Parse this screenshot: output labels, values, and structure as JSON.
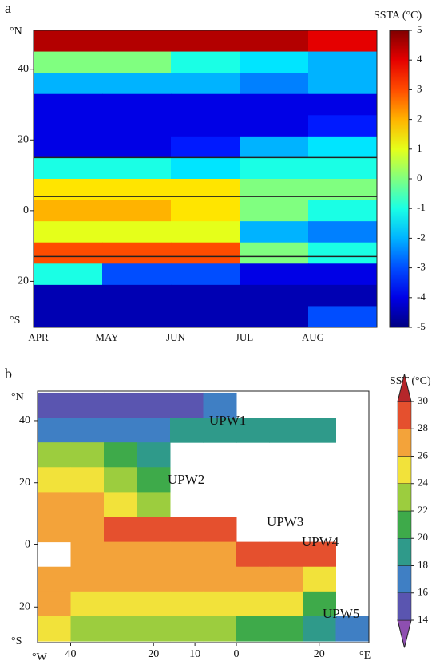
{
  "chart_data": [
    {
      "type": "heatmap",
      "label": "a",
      "colorbar_title": "SSTA (°C)",
      "categories": [
        "APR",
        "MAY",
        "JUN",
        "JUL",
        "AUG"
      ],
      "y": [
        48,
        42,
        36,
        30,
        24,
        18,
        12,
        6,
        0,
        -6,
        -12,
        -18,
        -24,
        -30
      ],
      "values": [
        [
          4.5,
          4.5,
          4.5,
          4.5,
          4
        ],
        [
          0,
          0,
          -1,
          -1.5,
          -2
        ],
        [
          -2,
          -2,
          -2,
          -2.5,
          -2
        ],
        [
          -4,
          -4,
          -4,
          -4,
          -4
        ],
        [
          -4,
          -4,
          -4,
          -4,
          -3.5
        ],
        [
          -4,
          -4,
          -3.5,
          -2,
          -1.5
        ],
        [
          -1,
          -1,
          -1.5,
          -1,
          -1
        ],
        [
          1.5,
          1.5,
          1.5,
          0,
          0
        ],
        [
          2,
          2,
          1.5,
          0,
          -1
        ],
        [
          1,
          1,
          1,
          -2,
          -2.5
        ],
        [
          3,
          3,
          3,
          0,
          -1
        ],
        [
          -1,
          -3,
          -3,
          -4,
          -4
        ],
        [
          -4.5,
          -4.5,
          -4.5,
          -4.5,
          -4.5
        ],
        [
          -4.5,
          -4.5,
          -4.5,
          -4.5,
          -3
        ]
      ],
      "ylim": [
        -33,
        51
      ],
      "yticks": [
        40,
        20,
        0,
        {
          "value": -20,
          "label": "20"
        }
      ],
      "y_unit_top": "°N",
      "y_unit_bottom": "°S",
      "ref_lines": [
        15,
        4,
        -13
      ],
      "zlim": [
        -5,
        5
      ],
      "zticks": [
        5,
        4,
        3,
        2,
        1,
        0,
        -1,
        -2,
        -3,
        -4,
        -5
      ]
    },
    {
      "type": "map",
      "label": "b",
      "colorbar_title": "SST (°C)",
      "x": [
        -44,
        -36,
        -28,
        -20,
        -12,
        -4,
        4,
        12,
        20,
        28
      ],
      "y": [
        45,
        37,
        29,
        21,
        13,
        5,
        -3,
        -11,
        -19,
        -27
      ],
      "values": [
        [
          14,
          14,
          15,
          15,
          15,
          16,
          null,
          null,
          null,
          null
        ],
        [
          17,
          17,
          17,
          17,
          18,
          18,
          18,
          18,
          18,
          null
        ],
        [
          22,
          22,
          21,
          19,
          null,
          null,
          null,
          null,
          null,
          null
        ],
        [
          24,
          24,
          23,
          21,
          null,
          null,
          null,
          null,
          null,
          null
        ],
        [
          26,
          26,
          25,
          23,
          null,
          null,
          null,
          null,
          null,
          null
        ],
        [
          27,
          27,
          28,
          28,
          29,
          28,
          null,
          null,
          null,
          null
        ],
        [
          null,
          27,
          27,
          27,
          27,
          27,
          28,
          28,
          29,
          null
        ],
        [
          27,
          26,
          26,
          26,
          26,
          26,
          26,
          26,
          25,
          null
        ],
        [
          26,
          25,
          25,
          24,
          24,
          24,
          24,
          24,
          21,
          null
        ],
        [
          24,
          23,
          23,
          22,
          22,
          22,
          21,
          20,
          18,
          17
        ]
      ],
      "xlim": [
        -48,
        32
      ],
      "xticks": [
        {
          "value": -40,
          "label": "40"
        },
        {
          "value": -20,
          "label": "20"
        },
        {
          "value": -10,
          "label": "10"
        },
        0,
        20
      ],
      "x_unit_left": "°W",
      "x_unit_right": "°E",
      "ylim": [
        -31.5,
        49.5
      ],
      "yticks": [
        40,
        20,
        0,
        {
          "value": -20,
          "label": "20"
        }
      ],
      "y_unit_top": "°N",
      "y_unit_bottom": "°S",
      "zticks": [
        30,
        28,
        26,
        24,
        22,
        20,
        18,
        16,
        14
      ],
      "colors": [
        "#8e4fb0",
        "#5a55b0",
        "#3f7fc4",
        "#2f9a8a",
        "#3eaa4a",
        "#9ccd3e",
        "#f2e23a",
        "#f3a33a",
        "#e5502e",
        "#b5262a"
      ],
      "annotations": [
        "UPW1",
        "UPW2",
        "UPW3",
        "UPW4",
        "UPW5"
      ]
    }
  ]
}
